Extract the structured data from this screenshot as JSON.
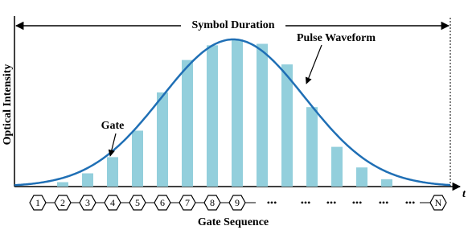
{
  "labels": {
    "duration": "Symbol Duration",
    "waveform": "Pulse Waveform",
    "gate": "Gate",
    "y_axis": "Optical Intensity",
    "x_axis": "Gate Sequence",
    "time": "t"
  },
  "bars": {
    "color": "#93cfdc",
    "values": [
      3,
      9,
      20,
      38,
      64,
      86,
      96,
      100,
      97,
      83,
      54,
      27,
      13,
      5
    ]
  },
  "curve_color": "#1f6fb5",
  "sequence": [
    "1",
    "2",
    "3",
    "4",
    "5",
    "6",
    "7",
    "8",
    "9",
    "•••",
    "•••",
    "•••",
    "•••",
    "•••",
    "•••",
    "N"
  ]
}
